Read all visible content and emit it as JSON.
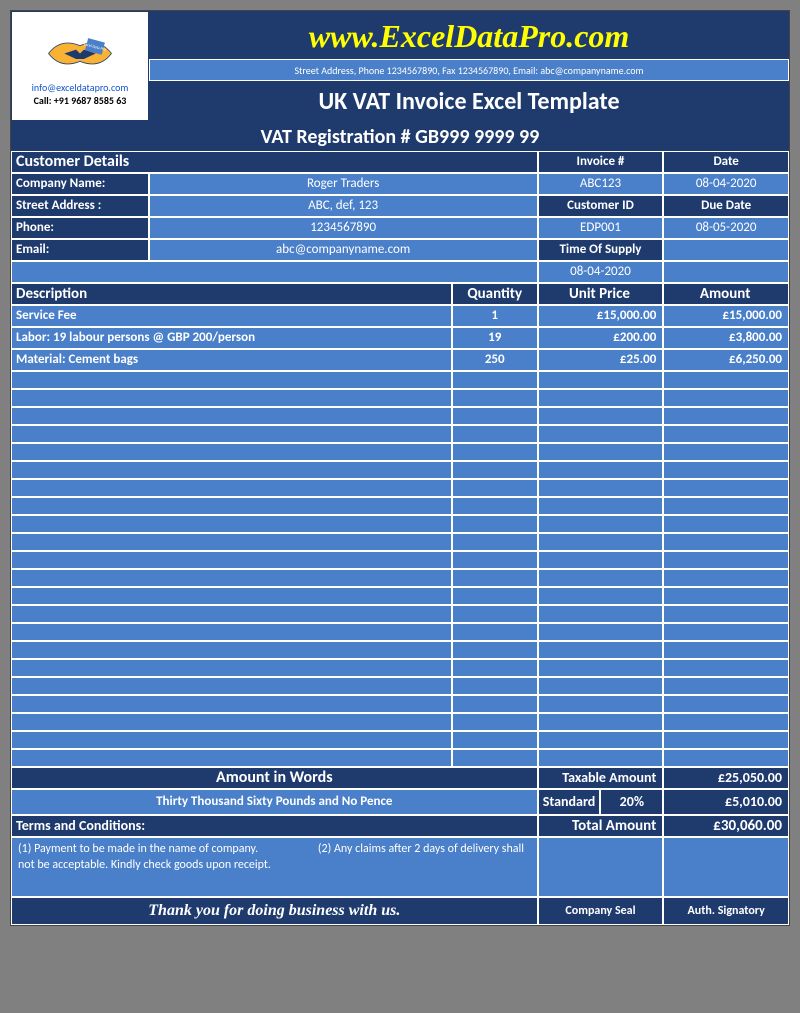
{
  "colors": {
    "dark_blue": "#1f3b6e",
    "light_blue": "#4a7fc9",
    "yellow": "#ffff00",
    "white": "#ffffff",
    "gray_bg": "#808080"
  },
  "header": {
    "site_url": "www.ExcelDataPro.com",
    "contact_line": "Street Address, Phone 1234567890, Fax 1234567890, Email: abc@companyname.com",
    "template_title": "UK VAT Invoice Excel Template",
    "logo_email": "info@exceldatapro.com",
    "logo_call": "Call: +91 9687 8585 63"
  },
  "vat_registration": "VAT Registration # GB999 9999 99",
  "labels": {
    "customer_details": "Customer Details",
    "company_name": "Company Name:",
    "street_address": "Street Address :",
    "phone": "Phone:",
    "email": "Email:",
    "invoice_no": "Invoice #",
    "date": "Date",
    "customer_id": "Customer ID",
    "due_date": "Due Date",
    "time_of_supply": "Time Of Supply",
    "description": "Description",
    "quantity": "Quantity",
    "unit_price": "Unit Price",
    "amount": "Amount",
    "amount_in_words": "Amount in Words",
    "taxable_amount": "Taxable Amount",
    "standard": "Standard",
    "terms": "Terms and Conditions:",
    "total_amount": "Total Amount",
    "company_seal": "Company Seal",
    "auth_signatory": "Auth. Signatory"
  },
  "customer": {
    "company_name": "Roger Traders",
    "street_address": "ABC, def, 123",
    "phone": "1234567890",
    "email": "abc@companyname.com"
  },
  "invoice": {
    "invoice_no": "ABC123",
    "date": "08-04-2020",
    "customer_id": "EDP001",
    "due_date": "08-05-2020",
    "time_of_supply": "08-04-2020"
  },
  "items": [
    {
      "description": "Service Fee",
      "quantity": "1",
      "unit_price": "£15,000.00",
      "amount": "£15,000.00"
    },
    {
      "description": "Labor: 19 labour persons @ GBP 200/person",
      "quantity": "19",
      "unit_price": "£200.00",
      "amount": "£3,800.00"
    },
    {
      "description": "Material: Cement bags",
      "quantity": "250",
      "unit_price": "£25.00",
      "amount": "£6,250.00"
    }
  ],
  "empty_rows": 22,
  "totals": {
    "amount_in_words": "Thirty  Thousand Sixty  Pounds and No Pence",
    "taxable_amount": "£25,050.00",
    "vat_rate": "20%",
    "vat_amount": "£5,010.00",
    "total_amount": "£30,060.00"
  },
  "terms_text_1": "(1) Payment to be made in the name of company.",
  "terms_text_2": "(2) Any claims after 2 days of delivery shall not be acceptable. Kindly check goods upon receipt.",
  "thanks": "Thank you for doing business with us."
}
